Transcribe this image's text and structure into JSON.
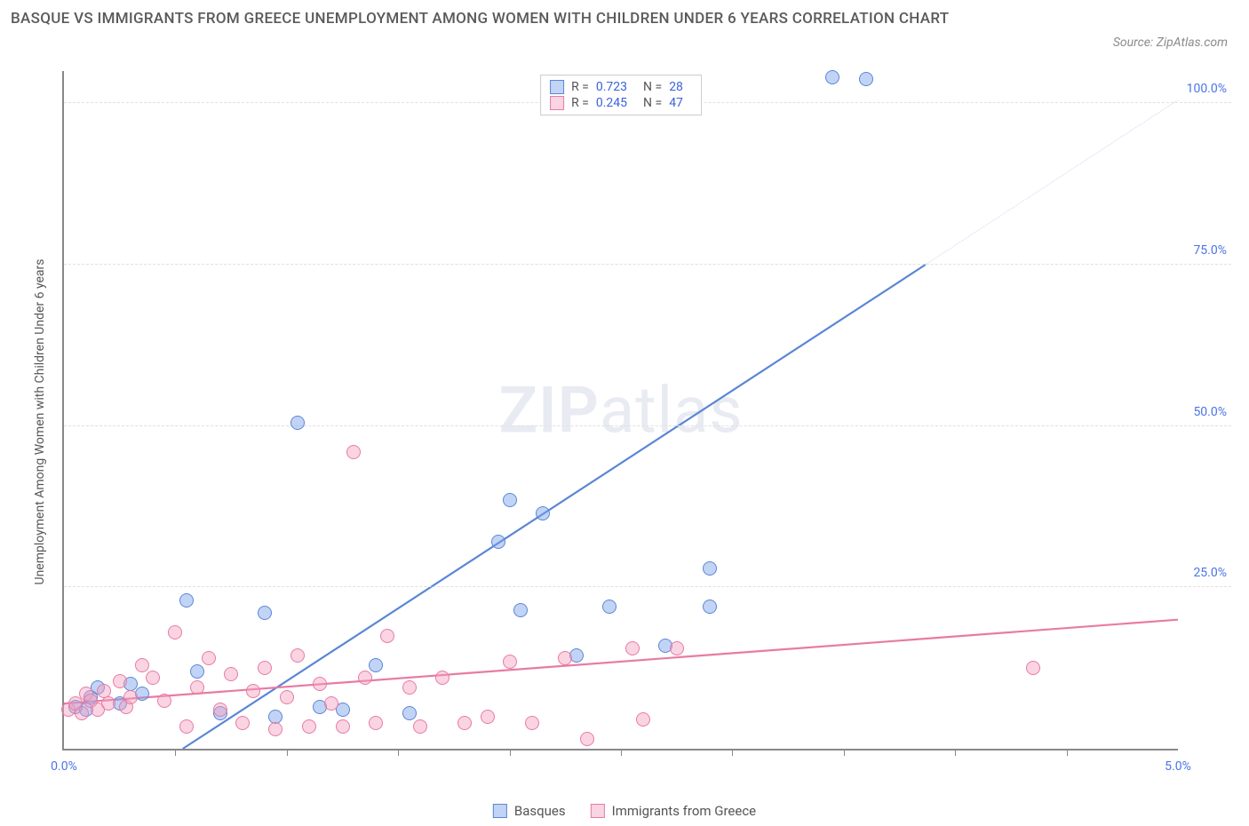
{
  "title": "BASQUE VS IMMIGRANTS FROM GREECE UNEMPLOYMENT AMONG WOMEN WITH CHILDREN UNDER 6 YEARS CORRELATION CHART",
  "source": "Source: ZipAtlas.com",
  "y_axis_label": "Unemployment Among Women with Children Under 6 years",
  "watermark_a": "ZIP",
  "watermark_b": "atlas",
  "chart": {
    "type": "scatter",
    "xlim": [
      0.0,
      5.0
    ],
    "ylim": [
      0.0,
      105.0
    ],
    "x_ticks": [
      0.0,
      5.0
    ],
    "x_tick_labels": [
      "0.0%",
      "5.0%"
    ],
    "x_minor_ticks": [
      0.5,
      1.0,
      1.5,
      2.0,
      2.5,
      3.0,
      3.5,
      4.0,
      4.5
    ],
    "y_ticks": [
      25.0,
      50.0,
      75.0,
      100.0
    ],
    "y_tick_labels": [
      "25.0%",
      "50.0%",
      "75.0%",
      "100.0%"
    ],
    "background_color": "#ffffff",
    "grid_color": "#e0e0e0",
    "axis_color": "#888888",
    "tick_label_color": "#4a74e8",
    "marker_radius": 8,
    "marker_stroke_width": 1.2,
    "series": [
      {
        "id": "basques",
        "label": "Basques",
        "fill": "rgba(120,160,235,0.45)",
        "stroke": "#5b86d6",
        "r": 0.723,
        "n": 28,
        "trend": {
          "slope": 22.5,
          "intercept": -12.0,
          "dash_above": 75.0
        },
        "points": [
          [
            0.05,
            6.5
          ],
          [
            0.1,
            6.0
          ],
          [
            0.12,
            8.0
          ],
          [
            0.15,
            9.5
          ],
          [
            0.25,
            7.0
          ],
          [
            0.3,
            10.0
          ],
          [
            0.35,
            8.5
          ],
          [
            0.55,
            23.0
          ],
          [
            0.6,
            12.0
          ],
          [
            0.7,
            5.5
          ],
          [
            0.9,
            21.0
          ],
          [
            0.95,
            5.0
          ],
          [
            1.05,
            50.5
          ],
          [
            1.15,
            6.5
          ],
          [
            1.25,
            6.0
          ],
          [
            1.4,
            13.0
          ],
          [
            1.55,
            5.5
          ],
          [
            1.95,
            32.0
          ],
          [
            2.0,
            38.5
          ],
          [
            2.05,
            21.5
          ],
          [
            2.15,
            36.5
          ],
          [
            2.3,
            14.5
          ],
          [
            2.45,
            22.0
          ],
          [
            2.7,
            16.0
          ],
          [
            2.9,
            22.0
          ],
          [
            2.9,
            28.0
          ],
          [
            3.45,
            104.0
          ],
          [
            3.6,
            103.8
          ]
        ]
      },
      {
        "id": "greece",
        "label": "Immigrants from Greece",
        "fill": "rgba(245,160,190,0.45)",
        "stroke": "#e87ba3",
        "r": 0.245,
        "n": 47,
        "trend": {
          "slope": 2.6,
          "intercept": 7.0,
          "dash_above": null
        },
        "points": [
          [
            0.02,
            6.0
          ],
          [
            0.05,
            7.0
          ],
          [
            0.08,
            5.5
          ],
          [
            0.1,
            8.5
          ],
          [
            0.12,
            7.5
          ],
          [
            0.15,
            6.0
          ],
          [
            0.18,
            9.0
          ],
          [
            0.2,
            7.0
          ],
          [
            0.25,
            10.5
          ],
          [
            0.28,
            6.5
          ],
          [
            0.3,
            8.0
          ],
          [
            0.35,
            13.0
          ],
          [
            0.4,
            11.0
          ],
          [
            0.45,
            7.5
          ],
          [
            0.5,
            18.0
          ],
          [
            0.55,
            3.5
          ],
          [
            0.6,
            9.5
          ],
          [
            0.65,
            14.0
          ],
          [
            0.7,
            6.0
          ],
          [
            0.75,
            11.5
          ],
          [
            0.8,
            4.0
          ],
          [
            0.85,
            9.0
          ],
          [
            0.9,
            12.5
          ],
          [
            0.95,
            3.0
          ],
          [
            1.0,
            8.0
          ],
          [
            1.05,
            14.5
          ],
          [
            1.1,
            3.5
          ],
          [
            1.15,
            10.0
          ],
          [
            1.2,
            7.0
          ],
          [
            1.25,
            3.5
          ],
          [
            1.3,
            46.0
          ],
          [
            1.35,
            11.0
          ],
          [
            1.4,
            4.0
          ],
          [
            1.45,
            17.5
          ],
          [
            1.55,
            9.5
          ],
          [
            1.6,
            3.5
          ],
          [
            1.7,
            11.0
          ],
          [
            1.8,
            4.0
          ],
          [
            1.9,
            5.0
          ],
          [
            2.0,
            13.5
          ],
          [
            2.1,
            4.0
          ],
          [
            2.25,
            14.0
          ],
          [
            2.35,
            1.5
          ],
          [
            2.55,
            15.5
          ],
          [
            2.6,
            4.5
          ],
          [
            4.35,
            12.5
          ],
          [
            2.75,
            15.5
          ]
        ]
      }
    ],
    "legend_top": {
      "r_label": "R =",
      "n_label": "N ="
    }
  }
}
